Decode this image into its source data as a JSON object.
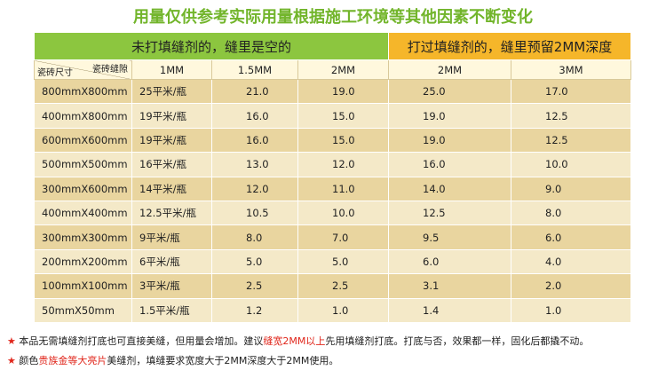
{
  "title": "用量仅供参考实际用量根据施工环境等其他因素不断变化",
  "table": {
    "group_headers": [
      "未打填缝剂的，缝里是空的",
      "打过填缝剂的，缝里预留2MM深度"
    ],
    "corner": {
      "top": "瓷砖缝隙",
      "bottom": "瓷砖尺寸"
    },
    "columns": [
      "1MM",
      "1.5MM",
      "2MM",
      "2MM",
      "3MM"
    ],
    "rows": [
      [
        "800mmX800mm",
        "25平米/瓶",
        "21.0",
        "19.0",
        "25.0",
        "17.0"
      ],
      [
        "400mmX800mm",
        "19平米/瓶",
        "16.0",
        "15.0",
        "19.0",
        "12.5"
      ],
      [
        "600mmX600mm",
        "19平米/瓶",
        "16.0",
        "15.0",
        "19.0",
        "12.5"
      ],
      [
        "500mmX500mm",
        "16平米/瓶",
        "13.0",
        "12.0",
        "16.0",
        "10.0"
      ],
      [
        "300mmX600mm",
        "14平米/瓶",
        "12.0",
        "11.0",
        "14.0",
        "9.0"
      ],
      [
        "400mmX400mm",
        "12.5平米/瓶",
        "10.5",
        "10.0",
        "12.5",
        "8.0"
      ],
      [
        "300mmX300mm",
        "9平米/瓶",
        "8.0",
        "7.0",
        "9.5",
        "6.0"
      ],
      [
        "200mmX200mm",
        "6平米/瓶",
        "5.0",
        "5.0",
        "6.0",
        "4.0"
      ],
      [
        "100mmX100mm",
        "3平米/瓶",
        "2.5",
        "2.5",
        "3.1",
        "2.0"
      ],
      [
        "50mmX50mm",
        "1.5平米/瓶",
        "1.2",
        "1.0",
        "1.4",
        "1.0"
      ]
    ]
  },
  "notes": [
    [
      "本品无需填缝剂打底也可直接美缝，但用量会增加。建议",
      "缝宽2MM以上",
      "先用填缝剂打底。打底与否，效果都一样，固化后都撬不动。"
    ],
    [
      "颜色",
      "贵族金等大亮片",
      "美缝剂，填缝要求宽度大于2MM深度大于2MM使用。"
    ]
  ]
}
